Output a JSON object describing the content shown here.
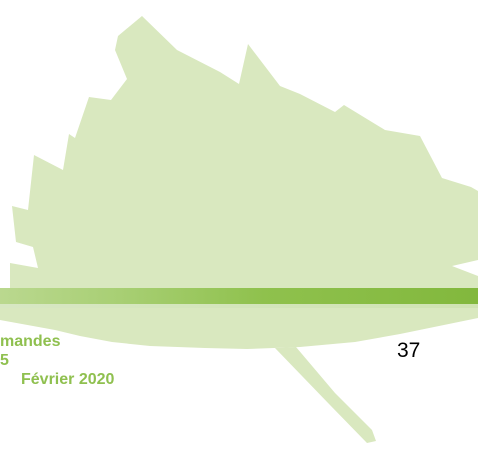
{
  "footer": {
    "lines": [
      "mandes",
      "5",
      "Février 2020"
    ],
    "page_number": "37"
  },
  "decoration": {
    "leaf_fill": "#d9e8bf",
    "band_color": "#8fc14d",
    "text_color": "#8fc04f"
  }
}
